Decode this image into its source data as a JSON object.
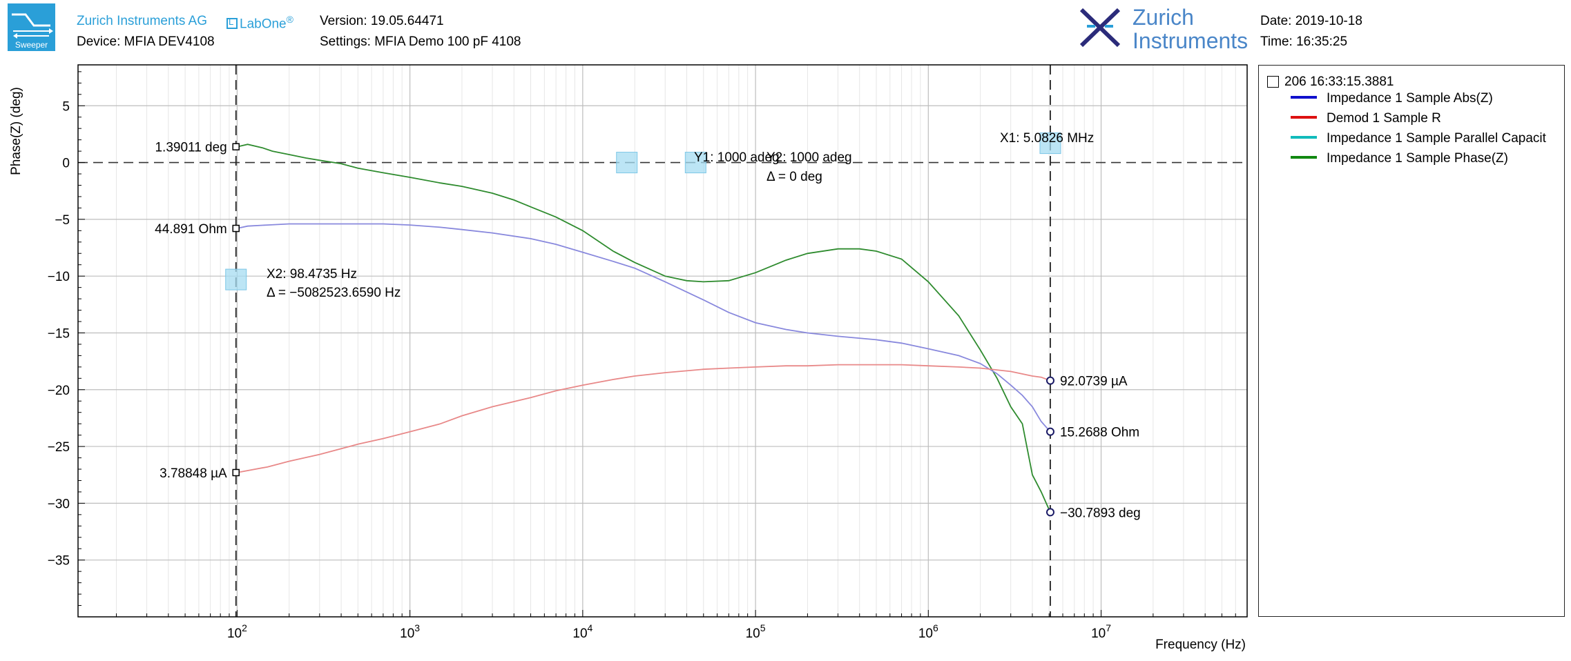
{
  "header": {
    "company": "Zurich Instruments AG",
    "labone": "LabOne",
    "labone_reg": "®",
    "device": "Device: MFIA DEV4108",
    "version": "Version: 19.05.64471",
    "settings": "Settings: MFIA Demo 100 pF 4108",
    "brand_line1": "Zurich",
    "brand_line2": "Instruments",
    "date": "Date: 2019-10-18",
    "time": "Time: 16:35:25",
    "logo_label": "Sweeper",
    "logo_icon": "sweeper-icon",
    "brand_icon": "zurich-instruments-logo-icon",
    "accent_color": "#2a9fd8"
  },
  "legend": {
    "title": "206 16:33:15.3881",
    "items": [
      {
        "label": "Impedance 1 Sample Abs(Z)",
        "color": "#1010cc"
      },
      {
        "label": "Demod 1 Sample R",
        "color": "#dd1111"
      },
      {
        "label": "Impedance 1 Sample Parallel Capacit",
        "color": "#11bbbb"
      },
      {
        "label": "Impedance 1 Sample Phase(Z)",
        "color": "#118811"
      }
    ]
  },
  "cursors": {
    "x1_label": "X1: 5.0826 MHz",
    "x2_label": "X2: 98.4735 Hz",
    "x2_delta": "Δ = −5082523.6590 Hz",
    "y1_label": "Y1: 1000 adeg",
    "y2_label": "Y2: 1000 adeg",
    "y_delta": "Δ = 0 deg",
    "x1_value": 5082600,
    "x2_value": 98.4735,
    "y1_value": 0,
    "y2_value": 0
  },
  "markers": {
    "left": [
      {
        "label": "1.39011 deg",
        "series": "phase"
      },
      {
        "label": "44.891 Ohm",
        "series": "absz"
      },
      {
        "label": "3.78848 µA",
        "series": "r"
      }
    ],
    "right": [
      {
        "label": "92.0739 µA",
        "series": "r"
      },
      {
        "label": "15.2688 Ohm",
        "series": "absz"
      },
      {
        "label": "−30.7893 deg",
        "series": "phase"
      }
    ]
  },
  "chart_data": {
    "type": "line",
    "ylabel": "Phase(Z) (deg)",
    "xlabel": "Frequency (Hz)",
    "x_scale": "log",
    "xlim": [
      12,
      70000000
    ],
    "ylim": [
      -40,
      8.6
    ],
    "y_ticks": [
      5,
      0,
      -5,
      -10,
      -15,
      -20,
      -25,
      -30,
      -35
    ],
    "x_tick_labels": [
      {
        "base": "10",
        "exp": "2",
        "value": 100
      },
      {
        "base": "10",
        "exp": "3",
        "value": 1000
      },
      {
        "base": "10",
        "exp": "4",
        "value": 10000
      },
      {
        "base": "10",
        "exp": "5",
        "value": 100000
      },
      {
        "base": "10",
        "exp": "6",
        "value": 1000000
      },
      {
        "base": "10",
        "exp": "7",
        "value": 10000000
      }
    ],
    "grid": true,
    "series": [
      {
        "key": "phase",
        "color": "#2e8b2e",
        "x": [
          100,
          115,
          140,
          160,
          200,
          250,
          300,
          400,
          500,
          700,
          1000,
          1500,
          2000,
          3000,
          4000,
          5000,
          7000,
          10000,
          15000,
          20000,
          30000,
          40000,
          50000,
          70000,
          100000,
          150000,
          200000,
          300000,
          400000,
          500000,
          700000,
          1000000,
          1500000,
          2000000,
          2500000,
          3000000,
          3500000,
          4000000,
          4500000,
          5080000
        ],
        "values": [
          1.39,
          1.6,
          1.3,
          1.0,
          0.7,
          0.4,
          0.2,
          -0.1,
          -0.5,
          -0.9,
          -1.3,
          -1.8,
          -2.1,
          -2.7,
          -3.3,
          -3.9,
          -4.8,
          -6.0,
          -7.8,
          -8.8,
          -10.0,
          -10.4,
          -10.5,
          -10.4,
          -9.7,
          -8.6,
          -8.0,
          -7.6,
          -7.6,
          -7.8,
          -8.5,
          -10.5,
          -13.5,
          -16.5,
          -19.0,
          -21.5,
          -23.0,
          -27.5,
          -29.0,
          -30.79
        ]
      },
      {
        "key": "absz",
        "color": "#8888dd",
        "x": [
          100,
          115,
          150,
          200,
          300,
          500,
          700,
          1000,
          1500,
          2000,
          3000,
          5000,
          7000,
          10000,
          15000,
          20000,
          30000,
          50000,
          70000,
          100000,
          150000,
          200000,
          300000,
          500000,
          700000,
          1000000,
          1500000,
          2000000,
          2500000,
          3000000,
          3500000,
          4000000,
          4500000,
          5080000
        ],
        "values": [
          -5.8,
          -5.6,
          -5.5,
          -5.4,
          -5.4,
          -5.4,
          -5.4,
          -5.5,
          -5.7,
          -5.9,
          -6.2,
          -6.7,
          -7.2,
          -7.9,
          -8.7,
          -9.3,
          -10.5,
          -12.1,
          -13.2,
          -14.1,
          -14.7,
          -15.0,
          -15.3,
          -15.6,
          -15.9,
          -16.4,
          -17.0,
          -17.7,
          -18.6,
          -19.6,
          -20.5,
          -21.5,
          -22.8,
          -23.7
        ]
      },
      {
        "key": "r",
        "color": "#e88888",
        "x": [
          100,
          150,
          200,
          300,
          500,
          700,
          1000,
          1500,
          2000,
          3000,
          5000,
          7000,
          10000,
          15000,
          20000,
          30000,
          50000,
          70000,
          100000,
          150000,
          200000,
          300000,
          500000,
          700000,
          1000000,
          1500000,
          2000000,
          3000000,
          4000000,
          4500000,
          5080000
        ],
        "values": [
          -27.3,
          -26.8,
          -26.3,
          -25.7,
          -24.8,
          -24.3,
          -23.7,
          -23.0,
          -22.3,
          -21.5,
          -20.7,
          -20.1,
          -19.6,
          -19.1,
          -18.8,
          -18.5,
          -18.2,
          -18.1,
          -18.0,
          -17.9,
          -17.9,
          -17.8,
          -17.8,
          -17.8,
          -17.9,
          -18.0,
          -18.1,
          -18.4,
          -18.8,
          -18.9,
          -19.2
        ]
      }
    ]
  }
}
